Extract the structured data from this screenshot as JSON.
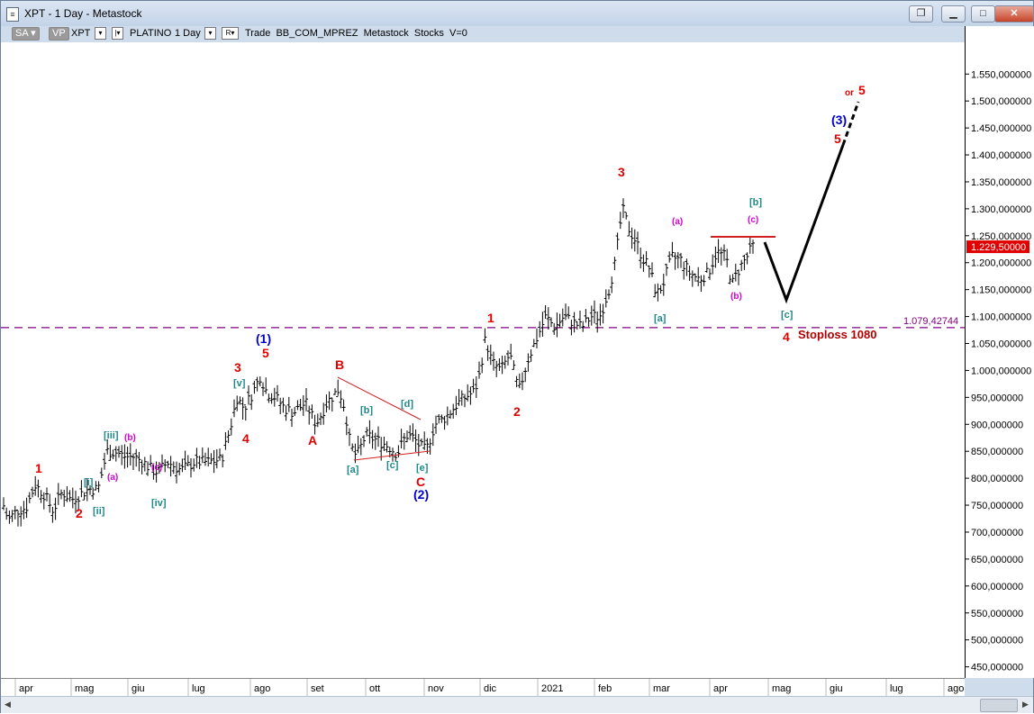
{
  "window": {
    "title": "XPT - 1 Day - Metastock",
    "icon": "document-icon",
    "buttons": [
      "restore",
      "minimize",
      "maximize",
      "close"
    ]
  },
  "toolbar": {
    "sa_label": "SA",
    "vp_label": "VP",
    "symbol": "XPT",
    "name": "PLATINO",
    "period": "1 Day",
    "mode_box": "R",
    "text": "Trade  BB_COM_MPREZ  Metastock  Stocks  V=0"
  },
  "colors": {
    "wave_red": "#e00000",
    "wave_blue": "#0000c8",
    "wave_teal": "#1f8a8a",
    "wave_magenta": "#d400d4",
    "stoploss_line": "#800080",
    "last_price_bg": "#e00000",
    "price_bars": "#000000"
  },
  "chart_data": {
    "type": "ohlc_bars",
    "instrument": "XPT",
    "timeframe": "1 Day",
    "ylim": [
      425,
      1600
    ],
    "y_ticks": [
      450,
      500,
      550,
      600,
      650,
      700,
      750,
      800,
      850,
      900,
      950,
      1000,
      1050,
      1100,
      1150,
      1200,
      1250,
      1300,
      1350,
      1400,
      1450,
      1500,
      1550
    ],
    "y_tick_labels": [
      "450,000000",
      "500,000000",
      "550,000000",
      "600,000000",
      "650,000000",
      "700,000000",
      "750,000000",
      "800,000000",
      "850,000000",
      "900,000000",
      "950,000000",
      "1.000,000000",
      "1.050,000000",
      "1.100,000000",
      "1.150,000000",
      "1.200,000000",
      "1.250,000000",
      "1.300,000000",
      "1.350,000000",
      "1.400,000000",
      "1.450,000000",
      "1.500,000000",
      "1.550,000000"
    ],
    "x_labels": [
      "apr",
      "mag",
      "giu",
      "lug",
      "ago",
      "set",
      "ott",
      "nov",
      "dic",
      "2021",
      "feb",
      "mar",
      "apr",
      "mag",
      "giu",
      "lug",
      "ago"
    ],
    "last_price": 1229.5,
    "last_price_label": "1.229,50000",
    "stoploss_level": 1079.42744,
    "stoploss_label": "1.079,42744",
    "stoploss_text": "Stoploss 1080",
    "price_path": [
      [
        0,
        765
      ],
      [
        8,
        722
      ],
      [
        18,
        740
      ],
      [
        28,
        745
      ],
      [
        38,
        788
      ],
      [
        48,
        770
      ],
      [
        58,
        740
      ],
      [
        68,
        775
      ],
      [
        78,
        760
      ],
      [
        88,
        770
      ],
      [
        98,
        780
      ],
      [
        108,
        780
      ],
      [
        118,
        850
      ],
      [
        128,
        848
      ],
      [
        138,
        840
      ],
      [
        148,
        840
      ],
      [
        158,
        830
      ],
      [
        168,
        815
      ],
      [
        175,
        812
      ],
      [
        185,
        830
      ],
      [
        200,
        815
      ],
      [
        215,
        830
      ],
      [
        230,
        830
      ],
      [
        245,
        835
      ],
      [
        255,
        895
      ],
      [
        262,
        950
      ],
      [
        270,
        930
      ],
      [
        280,
        960
      ],
      [
        288,
        990
      ],
      [
        295,
        960
      ],
      [
        305,
        950
      ],
      [
        315,
        930
      ],
      [
        325,
        922
      ],
      [
        338,
        940
      ],
      [
        350,
        900
      ],
      [
        362,
        940
      ],
      [
        375,
        965
      ],
      [
        382,
        930
      ],
      [
        388,
        860
      ],
      [
        395,
        840
      ],
      [
        405,
        880
      ],
      [
        418,
        870
      ],
      [
        430,
        860
      ],
      [
        440,
        845
      ],
      [
        450,
        880
      ],
      [
        458,
        875
      ],
      [
        465,
        860
      ],
      [
        472,
        850
      ],
      [
        482,
        900
      ],
      [
        495,
        915
      ],
      [
        505,
        935
      ],
      [
        515,
        950
      ],
      [
        525,
        960
      ],
      [
        530,
        980
      ],
      [
        538,
        1060
      ],
      [
        545,
        1015
      ],
      [
        555,
        1000
      ],
      [
        565,
        1030
      ],
      [
        575,
        960
      ],
      [
        585,
        1020
      ],
      [
        595,
        1060
      ],
      [
        605,
        1100
      ],
      [
        615,
        1080
      ],
      [
        625,
        1100
      ],
      [
        635,
        1090
      ],
      [
        645,
        1080
      ],
      [
        655,
        1100
      ],
      [
        665,
        1100
      ],
      [
        675,
        1150
      ],
      [
        682,
        1200
      ],
      [
        690,
        1300
      ],
      [
        698,
        1260
      ],
      [
        705,
        1240
      ],
      [
        712,
        1210
      ],
      [
        720,
        1190
      ],
      [
        728,
        1140
      ],
      [
        735,
        1160
      ],
      [
        745,
        1210
      ],
      [
        755,
        1205
      ],
      [
        765,
        1180
      ],
      [
        775,
        1170
      ],
      [
        785,
        1180
      ],
      [
        795,
        1220
      ],
      [
        805,
        1210
      ],
      [
        812,
        1160
      ],
      [
        820,
        1190
      ],
      [
        828,
        1210
      ],
      [
        835,
        1230
      ]
    ],
    "annotations": [
      {
        "text": "1",
        "color": "red"
      },
      {
        "text": "2",
        "color": "red"
      },
      {
        "text": "[i]",
        "color": "teal"
      },
      {
        "text": "[ii]",
        "color": "teal"
      },
      {
        "text": "[iii]",
        "color": "teal"
      },
      {
        "text": "(a)",
        "color": "magenta"
      },
      {
        "text": "(b)",
        "color": "magenta"
      },
      {
        "text": "(c)",
        "color": "magenta"
      },
      {
        "text": "[iv]",
        "color": "teal"
      },
      {
        "text": "[v]",
        "color": "teal"
      },
      {
        "text": "3",
        "color": "red"
      },
      {
        "text": "4",
        "color": "red"
      },
      {
        "text": "5",
        "color": "red"
      },
      {
        "text": "(1)",
        "color": "blue"
      },
      {
        "text": "A",
        "color": "red"
      },
      {
        "text": "B",
        "color": "red"
      },
      {
        "text": "C",
        "color": "red"
      },
      {
        "text": "[a]",
        "color": "teal"
      },
      {
        "text": "[b]",
        "color": "teal"
      },
      {
        "text": "[c]",
        "color": "teal"
      },
      {
        "text": "[d]",
        "color": "teal"
      },
      {
        "text": "[e]",
        "color": "teal"
      },
      {
        "text": "(2)",
        "color": "blue"
      },
      {
        "text": "1",
        "color": "red"
      },
      {
        "text": "2",
        "color": "red"
      },
      {
        "text": "3",
        "color": "red"
      },
      {
        "text": "(a)",
        "color": "magenta"
      },
      {
        "text": "[a]",
        "color": "teal"
      },
      {
        "text": "(b)",
        "color": "magenta"
      },
      {
        "text": "[b]",
        "color": "teal"
      },
      {
        "text": "(c)",
        "color": "magenta"
      },
      {
        "text": "[c]",
        "color": "teal"
      },
      {
        "text": "4",
        "color": "red"
      },
      {
        "text": "5",
        "color": "red"
      },
      {
        "text": "(3)",
        "color": "blue"
      },
      {
        "text": "or",
        "color": "red"
      },
      {
        "text": "5",
        "color": "red"
      }
    ]
  }
}
